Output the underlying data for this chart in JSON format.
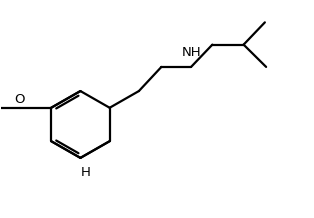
{
  "background_color": "#ffffff",
  "line_color": "#000000",
  "line_width": 1.6,
  "font_size": 9.5,
  "figsize": [
    3.14,
    2.18
  ],
  "dpi": 100,
  "xlim": [
    0,
    10
  ],
  "ylim": [
    0,
    7
  ]
}
